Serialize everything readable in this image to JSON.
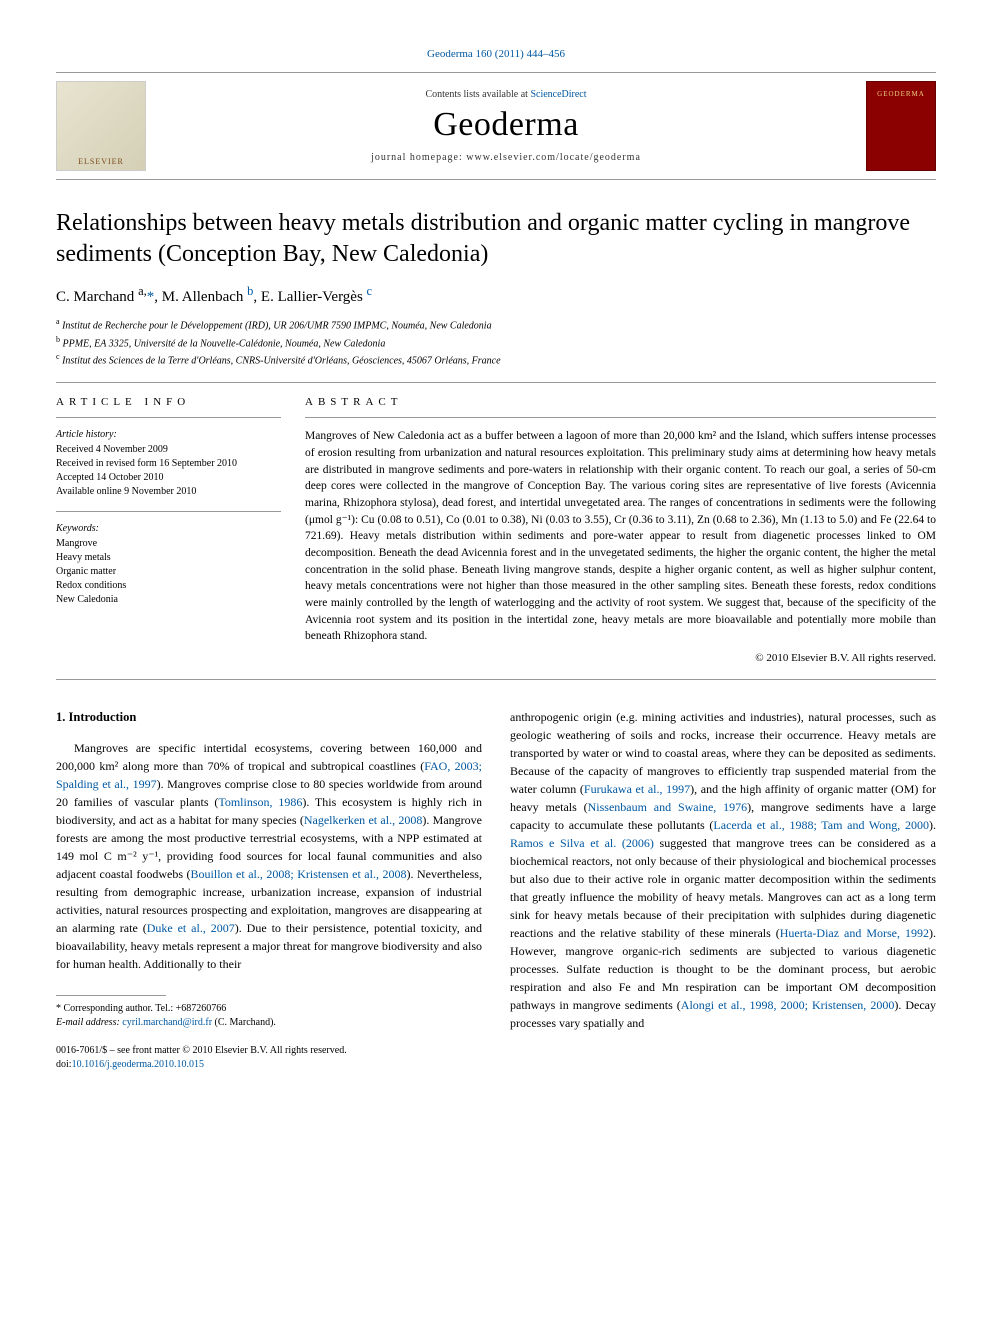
{
  "topline": "Geoderma 160 (2011) 444–456",
  "banner": {
    "publisher_wordmark": "ELSEVIER",
    "availability_prefix": "Contents lists available at ",
    "availability_link": "ScienceDirect",
    "journal": "Geoderma",
    "homepage": "journal homepage: www.elsevier.com/locate/geoderma",
    "cover_text": "GEODERMA"
  },
  "title": "Relationships between heavy metals distribution and organic matter cycling in mangrove sediments (Conception Bay, New Caledonia)",
  "authors_html": "C. Marchand <sup>a,</sup><span class='link'>*</span>, M. Allenbach <sup class='link'>b</sup>, E. Lallier-Vergès <sup class='link'>c</sup>",
  "affiliations": [
    {
      "sup": "a",
      "text": "Institut de Recherche pour le Développement (IRD), UR 206/UMR 7590 IMPMC, Nouméa, New Caledonia"
    },
    {
      "sup": "b",
      "text": "PPME, EA 3325, Université de la Nouvelle-Calédonie, Nouméa, New Caledonia"
    },
    {
      "sup": "c",
      "text": "Institut des Sciences de la Terre d'Orléans, CNRS-Université d'Orléans, Géosciences, 45067 Orléans, France"
    }
  ],
  "article_info": {
    "heading": "ARTICLE INFO",
    "history_label": "Article history:",
    "history": [
      "Received 4 November 2009",
      "Received in revised form 16 September 2010",
      "Accepted 14 October 2010",
      "Available online 9 November 2010"
    ],
    "keywords_label": "Keywords:",
    "keywords": [
      "Mangrove",
      "Heavy metals",
      "Organic matter",
      "Redox conditions",
      "New Caledonia"
    ]
  },
  "abstract": {
    "heading": "ABSTRACT",
    "text": "Mangroves of New Caledonia act as a buffer between a lagoon of more than 20,000 km² and the Island, which suffers intense processes of erosion resulting from urbanization and natural resources exploitation. This preliminary study aims at determining how heavy metals are distributed in mangrove sediments and pore-waters in relationship with their organic content. To reach our goal, a series of 50-cm deep cores were collected in the mangrove of Conception Bay. The various coring sites are representative of live forests (Avicennia marina, Rhizophora stylosa), dead forest, and intertidal unvegetated area. The ranges of concentrations in sediments were the following (μmol g⁻¹): Cu (0.08 to 0.51), Co (0.01 to 0.38), Ni (0.03 to 3.55), Cr (0.36 to 3.11), Zn (0.68 to 2.36), Mn (1.13 to 5.0) and Fe (22.64 to 721.69). Heavy metals distribution within sediments and pore-water appear to result from diagenetic processes linked to OM decomposition. Beneath the dead Avicennia forest and in the unvegetated sediments, the higher the organic content, the higher the metal concentration in the solid phase. Beneath living mangrove stands, despite a higher organic content, as well as higher sulphur content, heavy metals concentrations were not higher than those measured in the other sampling sites. Beneath these forests, redox conditions were mainly controlled by the length of waterlogging and the activity of root system. We suggest that, because of the specificity of the Avicennia root system and its position in the intertidal zone, heavy metals are more bioavailable and potentially more mobile than beneath Rhizophora stand.",
    "copyright": "© 2010 Elsevier B.V. All rights reserved."
  },
  "body": {
    "section_number": "1.",
    "section_title": "Introduction",
    "col1_html": "Mangroves are specific intertidal ecosystems, covering between 160,000 and 200,000 km² along more than 70% of tropical and subtropical coastlines (<span class='ref'>FAO, 2003; Spalding et al., 1997</span>). Mangroves comprise close to 80 species worldwide from around 20 families of vascular plants (<span class='ref'>Tomlinson, 1986</span>). This ecosystem is highly rich in biodiversity, and act as a habitat for many species (<span class='ref'>Nagelkerken et al., 2008</span>). Mangrove forests are among the most productive terrestrial ecosystems, with a NPP estimated at 149 mol C m⁻² y⁻¹, providing food sources for local faunal communities and also adjacent coastal foodwebs (<span class='ref'>Bouillon et al., 2008; Kristensen et al., 2008</span>). Nevertheless, resulting from demographic increase, urbanization increase, expansion of industrial activities, natural resources prospecting and exploitation, mangroves are disappearing at an alarming rate (<span class='ref'>Duke et al., 2007</span>). Due to their persistence, potential toxicity, and bioavailability, heavy metals represent a major threat for mangrove biodiversity and also for human health. Additionally to their",
    "col2_html": "anthropogenic origin (e.g. mining activities and industries), natural processes, such as geologic weathering of soils and rocks, increase their occurrence. Heavy metals are transported by water or wind to coastal areas, where they can be deposited as sediments. Because of the capacity of mangroves to efficiently trap suspended material from the water column (<span class='ref'>Furukawa et al., 1997</span>), and the high affinity of organic matter (OM) for heavy metals (<span class='ref'>Nissenbaum and Swaine, 1976</span>), mangrove sediments have a large capacity to accumulate these pollutants (<span class='ref'>Lacerda et al., 1988; Tam and Wong, 2000</span>). <span class='ref'>Ramos e Silva et al. (2006)</span> suggested that mangrove trees can be considered as a biochemical reactors, not only because of their physiological and biochemical processes but also due to their active role in organic matter decomposition within the sediments that greatly influence the mobility of heavy metals. Mangroves can act as a long term sink for heavy metals because of their precipitation with sulphides during diagenetic reactions and the relative stability of these minerals (<span class='ref'>Huerta-Diaz and Morse, 1992</span>). However, mangrove organic-rich sediments are subjected to various diagenetic processes. Sulfate reduction is thought to be the dominant process, but aerobic respiration and also Fe and Mn respiration can be important OM decomposition pathways in mangrove sediments (<span class='ref'>Alongi et al., 1998, 2000; Kristensen, 2000</span>). Decay processes vary spatially and"
  },
  "footnote": {
    "corr_label": "* Corresponding author. Tel.: +687260766",
    "email_label": "E-mail address:",
    "email": "cyril.marchand@ird.fr",
    "email_author": "(C. Marchand)."
  },
  "bottom": {
    "issn_line": "0016-7061/$ – see front matter © 2010 Elsevier B.V. All rights reserved.",
    "doi_prefix": "doi:",
    "doi": "10.1016/j.geoderma.2010.10.015"
  },
  "colors": {
    "link": "#0058a1",
    "text": "#000000",
    "rule": "#999999",
    "cover_bg": "#8b0000",
    "cover_text": "#f0d080"
  },
  "fonts": {
    "body": "Georgia, 'Times New Roman', serif",
    "journal": "'Book Antiqua', Georgia, serif"
  }
}
